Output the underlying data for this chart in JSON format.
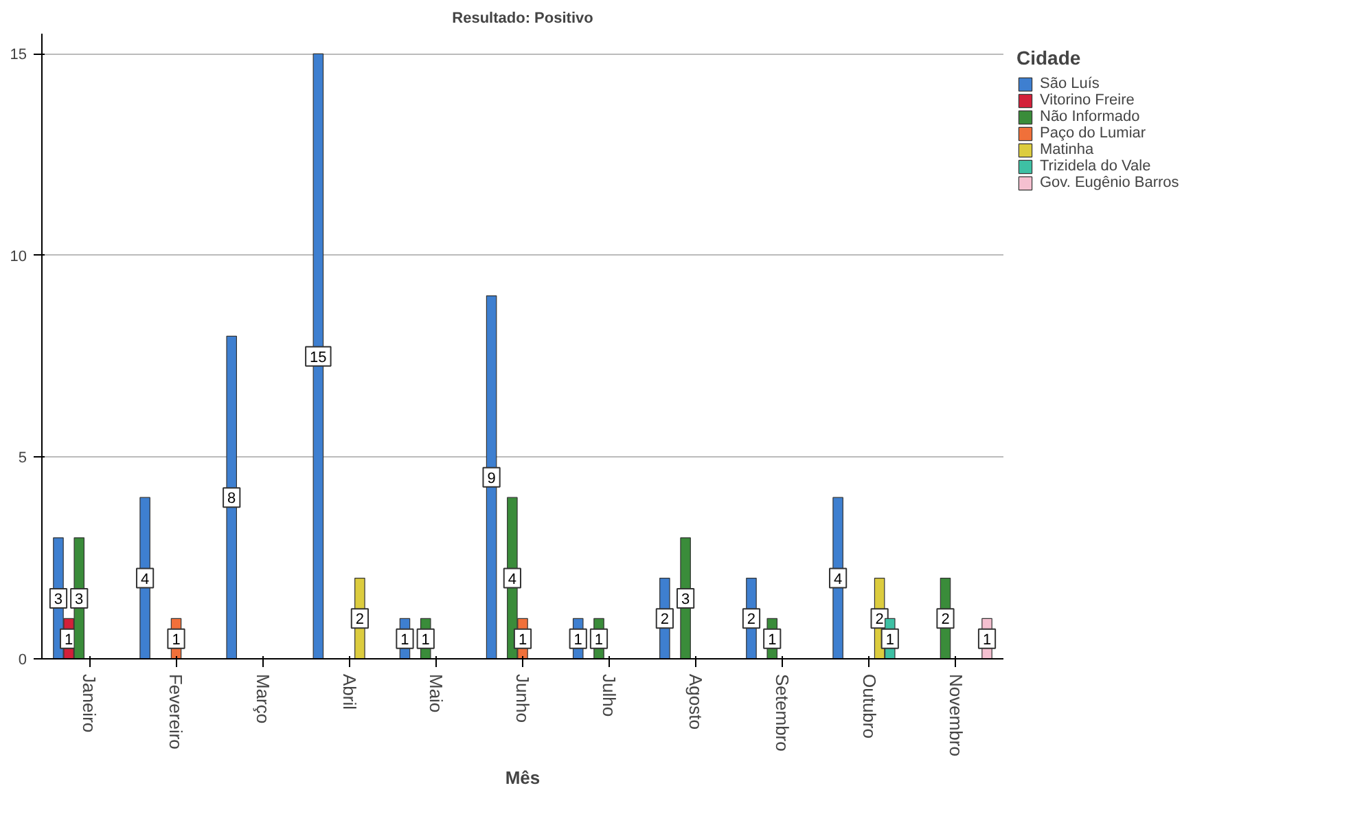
{
  "chart_data": {
    "type": "bar",
    "title": "Resultado: Positivo",
    "xlabel": "Mês",
    "legend_title": "Cidade",
    "categories": [
      "Janeiro",
      "Fevereiro",
      "Março",
      "Abril",
      "Maio",
      "Junho",
      "Julho",
      "Agosto",
      "Setembro",
      "Outubro",
      "Novembro"
    ],
    "series": [
      {
        "name": "São Luís",
        "color": "#3e7fd0",
        "values": [
          3,
          4,
          8,
          15,
          1,
          9,
          1,
          2,
          2,
          4,
          null
        ]
      },
      {
        "name": "Vitorino Freire",
        "color": "#d3203a",
        "values": [
          1,
          null,
          null,
          null,
          null,
          null,
          null,
          null,
          null,
          null,
          null
        ]
      },
      {
        "name": "Não Informado",
        "color": "#3a8c3a",
        "values": [
          3,
          null,
          null,
          null,
          1,
          4,
          1,
          3,
          1,
          null,
          2
        ]
      },
      {
        "name": "Paço do Lumiar",
        "color": "#f0703a",
        "values": [
          null,
          1,
          null,
          null,
          null,
          1,
          null,
          null,
          null,
          null,
          null
        ]
      },
      {
        "name": "Matinha",
        "color": "#dccc3e",
        "values": [
          null,
          null,
          null,
          2,
          null,
          null,
          null,
          null,
          null,
          2,
          null
        ]
      },
      {
        "name": "Trizidela do Vale",
        "color": "#3ec0a4",
        "values": [
          null,
          null,
          null,
          null,
          null,
          null,
          null,
          null,
          null,
          1,
          null
        ]
      },
      {
        "name": "Gov. Eugênio Barros",
        "color": "#f5c0d0",
        "values": [
          null,
          null,
          null,
          null,
          null,
          null,
          null,
          null,
          null,
          null,
          1
        ]
      }
    ],
    "ylim": [
      0,
      15.5
    ],
    "yticks": [
      0,
      5,
      10,
      15
    ],
    "grid": "y",
    "legend": "right",
    "data_labels": true
  }
}
